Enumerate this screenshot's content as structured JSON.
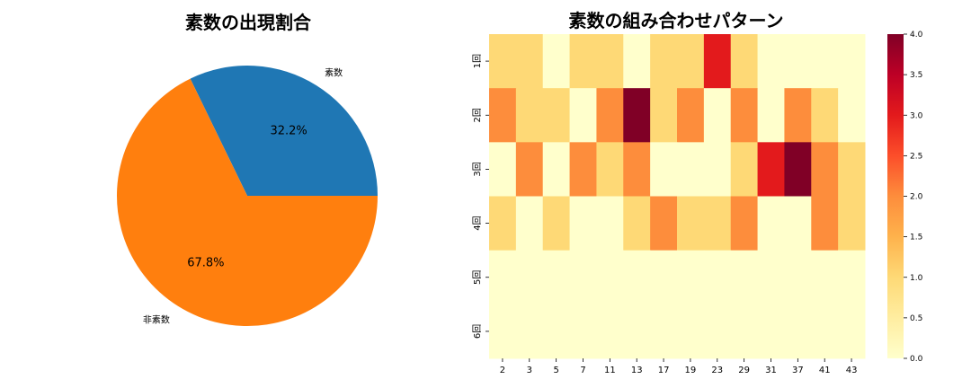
{
  "chart_data": [
    {
      "type": "pie",
      "title": "素数の出現割合",
      "slices": [
        {
          "label": "素数",
          "value": 32.2,
          "pct_label": "32.2%",
          "color": "#1f77b4"
        },
        {
          "label": "非素数",
          "value": 67.8,
          "pct_label": "67.8%",
          "color": "#ff7f0e"
        }
      ]
    },
    {
      "type": "heatmap",
      "title": "素数の組み合わせパターン",
      "x_categories": [
        "2",
        "3",
        "5",
        "7",
        "11",
        "13",
        "17",
        "19",
        "23",
        "29",
        "31",
        "37",
        "41",
        "43"
      ],
      "y_categories": [
        "1回",
        "2回",
        "3回",
        "4回",
        "5回",
        "6回"
      ],
      "values": [
        [
          1,
          1,
          0,
          1,
          1,
          0,
          1,
          1,
          3,
          1,
          0,
          0,
          0,
          0
        ],
        [
          2,
          1,
          1,
          0,
          2,
          4,
          1,
          2,
          0,
          2,
          0,
          2,
          1,
          0
        ],
        [
          0,
          2,
          0,
          2,
          1,
          2,
          0,
          0,
          0,
          1,
          3,
          4,
          2,
          1
        ],
        [
          1,
          0,
          1,
          0,
          0,
          1,
          2,
          1,
          1,
          2,
          0,
          0,
          2,
          1
        ],
        [
          0,
          0,
          0,
          0,
          0,
          0,
          0,
          0,
          0,
          0,
          0,
          0,
          0,
          0
        ],
        [
          0,
          0,
          0,
          0,
          0,
          0,
          0,
          0,
          0,
          0,
          0,
          0,
          0,
          0
        ]
      ],
      "colorbar": {
        "min": 0,
        "max": 4,
        "ticks": [
          "0.0",
          "0.5",
          "1.0",
          "1.5",
          "2.0",
          "2.5",
          "3.0",
          "3.5",
          "4.0"
        ],
        "colormap": "YlOrRd",
        "colors": [
          "#ffffcc",
          "#ffeda0",
          "#fed976",
          "#feb24c",
          "#fd8d3c",
          "#fc4e2a",
          "#e31a1c",
          "#bd0026",
          "#800026"
        ]
      }
    }
  ]
}
